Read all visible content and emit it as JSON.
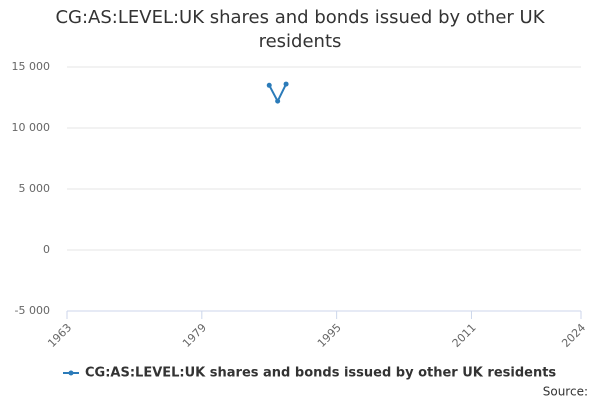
{
  "chart_data": {
    "type": "line",
    "title": "CG:AS:LEVEL:UK shares and bonds issued by other UK residents",
    "source": "Source:",
    "x": [
      1987,
      1988,
      1989
    ],
    "series": [
      {
        "name": "CG:AS:LEVEL:UK shares and bonds issued by other UK residents",
        "color": "#2b7bb9",
        "values": [
          13500,
          12200,
          13600
        ]
      }
    ],
    "xlim": [
      1963,
      2024
    ],
    "xticks": [
      1963,
      1979,
      1995,
      2011,
      2024
    ],
    "ylim": [
      -5000,
      15000
    ],
    "yticks": [
      {
        "value": -5000,
        "label": "-5 000"
      },
      0,
      {
        "value": 5000,
        "label": "5 000"
      },
      {
        "value": 10000,
        "label": "10 000"
      },
      {
        "value": 15000,
        "label": "15 000"
      }
    ],
    "grid": true
  }
}
